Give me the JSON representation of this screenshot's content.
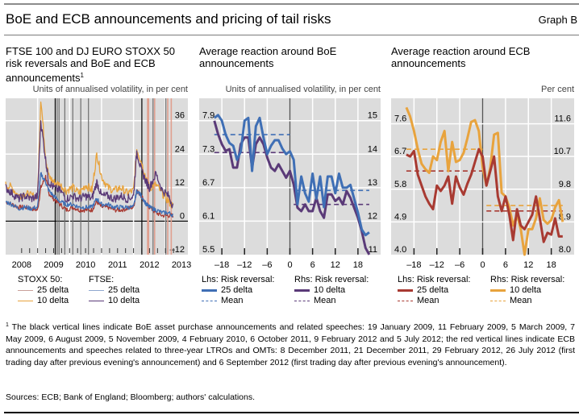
{
  "header": {
    "title": "BoE and ECB announcements and pricing of tail risks",
    "graph_label": "Graph B"
  },
  "footnote": {
    "marker": "1",
    "text": "The black vertical lines indicate BoE asset purchase announcements and related speeches: 19 January 2009, 11 February 2009, 5 March 2009, 7 May 2009, 6 August 2009, 5 November 2009, 4 February 2010, 6 October 2011, 9 February 2012 and 5 July 2012; the red vertical lines indicate ECB announcements and speeches related to three-year LTROs and OMTs: 8 December 2011, 21 December 2011, 29 February 2012, 26 July 2012 (first trading day after previous evening's announcement) and 6 September 2012 (first trading day after previous evening's announcement)."
  },
  "sources": "Sources: ECB; Bank of England; Bloomberg; authors' calculations.",
  "chart_data": [
    {
      "type": "line",
      "title": "FTSE 100 and DJ EURO STOXX 50 risk reversals and BoE and ECB announcements",
      "title_footnote": "1",
      "ylabel": "Units of annualised volatility, in per cent",
      "y_axis_side": "right",
      "ylim": [
        -12,
        44
      ],
      "yticks": [
        36,
        24,
        12,
        0,
        -12
      ],
      "xlim": [
        2007.5,
        2013.2
      ],
      "xticks": [
        "2008",
        "2009",
        "2010",
        "2011",
        "2012",
        "2013"
      ],
      "grid": true,
      "legend": {
        "placement": "bottom",
        "groups": [
          {
            "header": "STOXX 50:",
            "items": [
              {
                "label": "25 delta",
                "color": "#c9a09a"
              },
              {
                "label": "10 delta",
                "color": "#e8a33d"
              }
            ]
          },
          {
            "header": "FTSE:",
            "items": [
              {
                "label": "25 delta",
                "color": "#8fa8cf"
              },
              {
                "label": "10 delta",
                "color": "#5a3a78"
              }
            ]
          }
        ]
      },
      "vertical_lines": {
        "boe_black": [
          2009.05,
          2009.11,
          2009.17,
          2009.35,
          2009.6,
          2009.85,
          2010.09,
          2011.76,
          2012.11,
          2012.51
        ],
        "ecb_red": [
          2011.94,
          2011.97,
          2012.16,
          2012.57,
          2012.68
        ]
      },
      "series": [
        {
          "name": "STOXX 50 25 delta",
          "color": "#a83a32",
          "x": [
            2007.5,
            2007.7,
            2007.9,
            2008.1,
            2008.3,
            2008.5,
            2008.6,
            2008.75,
            2008.85,
            2009.0,
            2009.2,
            2009.4,
            2009.6,
            2009.8,
            2010.0,
            2010.2,
            2010.35,
            2010.5,
            2010.7,
            2010.9,
            2011.1,
            2011.3,
            2011.5,
            2011.6,
            2011.75,
            2011.9,
            2012.0,
            2012.2,
            2012.4,
            2012.6,
            2012.75
          ],
          "values": [
            7,
            6,
            5,
            5,
            4.5,
            4,
            12,
            16,
            10,
            8,
            6,
            4,
            5,
            4,
            4,
            4,
            7,
            5,
            5,
            4,
            4,
            4.5,
            5,
            11,
            9,
            6,
            5,
            3,
            2,
            2,
            2
          ]
        },
        {
          "name": "STOXX 50 10 delta",
          "color": "#e8a33d",
          "x": [
            2007.5,
            2007.7,
            2007.9,
            2008.1,
            2008.3,
            2008.5,
            2008.6,
            2008.75,
            2008.85,
            2009.0,
            2009.2,
            2009.4,
            2009.6,
            2009.8,
            2010.0,
            2010.2,
            2010.35,
            2010.5,
            2010.7,
            2010.9,
            2011.1,
            2011.3,
            2011.5,
            2011.6,
            2011.75,
            2011.9,
            2012.0,
            2012.2,
            2012.4,
            2012.6,
            2012.75
          ],
          "values": [
            13,
            12,
            9,
            10,
            9,
            9,
            44,
            23,
            16,
            14,
            13,
            11,
            12,
            10,
            13,
            11,
            24,
            16,
            12,
            11,
            12,
            10,
            11,
            26,
            21,
            15,
            12,
            13,
            10,
            7,
            5
          ]
        },
        {
          "name": "FTSE 25 delta",
          "color": "#3f6fb5",
          "x": [
            2007.5,
            2007.7,
            2007.9,
            2008.1,
            2008.3,
            2008.5,
            2008.6,
            2008.75,
            2008.85,
            2009.0,
            2009.2,
            2009.4,
            2009.6,
            2009.8,
            2010.0,
            2010.2,
            2010.35,
            2010.5,
            2010.7,
            2010.9,
            2011.1,
            2011.3,
            2011.5,
            2011.6,
            2011.75,
            2011.9,
            2012.0,
            2012.2,
            2012.4,
            2012.6,
            2012.75
          ],
          "values": [
            7,
            6,
            4.5,
            5,
            4.5,
            5,
            17,
            14,
            11,
            9,
            7,
            6,
            6,
            5,
            5,
            5,
            8,
            6,
            6,
            5,
            5,
            5,
            5,
            11,
            9,
            6,
            5,
            4,
            3,
            3,
            2
          ]
        },
        {
          "name": "FTSE 10 delta",
          "color": "#5a3a78",
          "x": [
            2007.5,
            2007.7,
            2007.9,
            2008.1,
            2008.3,
            2008.5,
            2008.6,
            2008.75,
            2008.85,
            2009.0,
            2009.2,
            2009.4,
            2009.6,
            2009.8,
            2010.0,
            2010.2,
            2010.35,
            2010.5,
            2010.7,
            2010.9,
            2011.1,
            2011.3,
            2011.5,
            2011.6,
            2011.75,
            2011.9,
            2012.0,
            2012.2,
            2012.4,
            2012.6,
            2012.75
          ],
          "values": [
            12,
            10,
            8,
            9,
            8,
            9,
            36,
            22,
            14,
            12,
            11,
            8,
            9,
            8,
            9,
            8,
            14,
            9,
            9,
            8,
            9,
            8,
            9,
            25,
            18,
            14,
            12,
            17,
            11,
            9,
            5
          ]
        }
      ]
    },
    {
      "type": "line",
      "title": "Average reaction around BoE announcements",
      "ylabel": "Units of annualised volatility, in per cent",
      "xticks": [
        "–18",
        "–12",
        "–6",
        "0",
        "6",
        "12",
        "18"
      ],
      "xtick_values": [
        -18,
        -12,
        -6,
        0,
        6,
        12,
        18
      ],
      "xlim": [
        -24,
        24
      ],
      "y_left": {
        "ylim": [
          5.5,
          8.3
        ],
        "yticks": [
          "7.9",
          "7.3",
          "6.7",
          "6.1",
          "5.5"
        ]
      },
      "y_right": {
        "ylim": [
          11,
          15.67
        ],
        "yticks": [
          "15",
          "14",
          "13",
          "12",
          "11"
        ]
      },
      "grid": true,
      "legend": {
        "placement": "bottom",
        "groups": [
          {
            "header": "Lhs: Risk reversal:",
            "items": [
              {
                "label": "25 delta",
                "color": "#3f6fb5",
                "style": "solid"
              },
              {
                "label": "Mean",
                "color": "#3f6fb5",
                "style": "dashed"
              }
            ]
          },
          {
            "header": "Rhs: Risk reversal:",
            "items": [
              {
                "label": "10 delta",
                "color": "#5a3a78",
                "style": "solid"
              },
              {
                "label": "Mean",
                "color": "#5a3a78",
                "style": "dashed"
              }
            ]
          }
        ]
      },
      "series": [
        {
          "name": "25 delta (Lhs)",
          "axis": "left",
          "color": "#3f6fb5",
          "x": [
            -20,
            -19,
            -18,
            -17,
            -16,
            -15,
            -14,
            -13,
            -12,
            -11,
            -10,
            -9,
            -8,
            -7,
            -6,
            -5,
            -4,
            -3,
            -2,
            -1,
            0,
            1,
            2,
            3,
            4,
            5,
            6,
            7,
            8,
            9,
            10,
            11,
            12,
            13,
            14,
            15,
            16,
            17,
            18,
            19,
            20,
            21
          ],
          "values": [
            7.95,
            8.0,
            7.9,
            7.65,
            7.5,
            7.45,
            7.2,
            7.35,
            7.9,
            7.95,
            7.0,
            7.8,
            7.95,
            7.6,
            7.3,
            7.45,
            7.55,
            7.55,
            7.4,
            7.3,
            7.35,
            7.2,
            6.4,
            6.9,
            6.6,
            6.45,
            6.95,
            6.5,
            6.9,
            6.35,
            6.9,
            6.9,
            6.6,
            6.95,
            6.7,
            6.7,
            6.75,
            6.5,
            6.25,
            5.95,
            5.85,
            5.9
          ]
        },
        {
          "name": "10 delta (Rhs)",
          "axis": "right",
          "color": "#5a3a78",
          "x": [
            -20,
            -19,
            -18,
            -17,
            -16,
            -15,
            -14,
            -13,
            -12,
            -11,
            -10,
            -9,
            -8,
            -7,
            -6,
            -5,
            -4,
            -3,
            -2,
            -1,
            0,
            1,
            2,
            3,
            4,
            5,
            6,
            7,
            8,
            9,
            10,
            11,
            12,
            13,
            14,
            15,
            16,
            17,
            18,
            19,
            20,
            21
          ],
          "values": [
            15,
            14.6,
            14.3,
            14.1,
            14.15,
            13.6,
            13.6,
            14.3,
            14.5,
            14.5,
            13.6,
            14.3,
            14.5,
            14.3,
            13.9,
            13.6,
            13.5,
            13.7,
            13.5,
            13.3,
            13.5,
            13.1,
            12.4,
            12.3,
            12.5,
            12.3,
            12.3,
            12.7,
            12.3,
            12.1,
            12.8,
            12.8,
            12.6,
            12.7,
            12.5,
            12.9,
            12.7,
            12.4,
            12.1,
            11.7,
            11.2,
            11.0
          ]
        },
        {
          "name": "25 delta mean (Lhs)",
          "axis": "left",
          "color": "#3f6fb5",
          "style": "dashed",
          "segments": [
            {
              "x": [
                -20,
                0
              ],
              "value": 7.65
            },
            {
              "x": [
                1,
                21
              ],
              "value": 6.65
            }
          ]
        },
        {
          "name": "10 delta mean (Rhs)",
          "axis": "right",
          "color": "#5a3a78",
          "style": "dashed",
          "segments": [
            {
              "x": [
                -20,
                0
              ],
              "value": 14.05
            },
            {
              "x": [
                1,
                21
              ],
              "value": 12.5
            }
          ]
        }
      ]
    },
    {
      "type": "line",
      "title": "Average reaction around ECB announcements",
      "ylabel": "Per cent",
      "xticks": [
        "–18",
        "–12",
        "–6",
        "0",
        "6",
        "12",
        "18"
      ],
      "xtick_values": [
        -18,
        -12,
        -6,
        0,
        6,
        12,
        18
      ],
      "xlim": [
        -24,
        24
      ],
      "y_left": {
        "ylim": [
          4.0,
          8.3
        ],
        "yticks": [
          "7.6",
          "6.7",
          "5.8",
          "4.9",
          "4.0"
        ]
      },
      "y_right": {
        "ylim": [
          8.0,
          12.3
        ],
        "yticks": [
          "11.6",
          "10.7",
          "9.8",
          "8.9",
          "8.0"
        ]
      },
      "grid": true,
      "legend": {
        "placement": "bottom",
        "groups": [
          {
            "header": "Lhs: Risk reversal:",
            "items": [
              {
                "label": "25 delta",
                "color": "#a83a32",
                "style": "solid"
              },
              {
                "label": "Mean",
                "color": "#a83a32",
                "style": "dashed"
              }
            ]
          },
          {
            "header": "Rhs: Risk reversal:",
            "items": [
              {
                "label": "10 delta",
                "color": "#e8a33d",
                "style": "solid"
              },
              {
                "label": "Mean",
                "color": "#e8a33d",
                "style": "dashed"
              }
            ]
          }
        ]
      },
      "series": [
        {
          "name": "25 delta (Lhs)",
          "axis": "left",
          "color": "#a83a32",
          "x": [
            -20,
            -19,
            -18,
            -17,
            -16,
            -15,
            -14,
            -13,
            -12,
            -11,
            -10,
            -9,
            -8,
            -7,
            -6,
            -5,
            -4,
            -3,
            -2,
            -1,
            0,
            1,
            2,
            3,
            4,
            5,
            6,
            7,
            8,
            9,
            10,
            11,
            12,
            13,
            14,
            15,
            16,
            17,
            18,
            19,
            20,
            21
          ],
          "values": [
            6.75,
            6.7,
            6.85,
            6.2,
            5.9,
            5.6,
            5.4,
            5.25,
            5.9,
            5.75,
            5.9,
            6.15,
            5.4,
            6.15,
            5.85,
            5.65,
            5.95,
            6.2,
            6.55,
            6.9,
            6.7,
            5.9,
            6.3,
            6.7,
            5.6,
            5.2,
            5.6,
            5.1,
            4.4,
            5.25,
            4.8,
            4.7,
            4.9,
            5.1,
            5.6,
            5.0,
            4.35,
            4.6,
            4.55,
            5.0,
            4.5,
            4.5
          ]
        },
        {
          "name": "10 delta (Rhs)",
          "axis": "right",
          "color": "#e8a33d",
          "x": [
            -20,
            -19,
            -18,
            -17,
            -16,
            -15,
            -14,
            -13,
            -12,
            -11,
            -10,
            -9,
            -8,
            -7,
            -6,
            -5,
            -4,
            -3,
            -2,
            -1,
            0,
            1,
            2,
            3,
            4,
            5,
            6,
            7,
            8,
            9,
            10,
            11,
            12,
            13,
            14,
            15,
            16,
            17,
            18,
            19,
            20,
            21
          ],
          "values": [
            12.05,
            11.8,
            11.4,
            10.9,
            10.5,
            10.35,
            10.25,
            10.7,
            10.6,
            11.1,
            11.4,
            10.3,
            11.1,
            10.55,
            10.6,
            10.8,
            11.2,
            11.65,
            11.7,
            11.4,
            10.4,
            9.9,
            10.4,
            11.3,
            11.35,
            9.7,
            9.6,
            9.3,
            8.8,
            9.1,
            8.7,
            8.0,
            8.7,
            8.7,
            9.0,
            9.55,
            8.95,
            8.85,
            8.95,
            9.3,
            9.5,
            8.9
          ]
        },
        {
          "name": "25 delta mean (Lhs)",
          "axis": "left",
          "color": "#a83a32",
          "style": "dashed",
          "segments": [
            {
              "x": [
                -20,
                0
              ],
              "value": 6.3
            },
            {
              "x": [
                1,
                21
              ],
              "value": 5.2
            }
          ]
        },
        {
          "name": "10 delta mean (Rhs)",
          "axis": "right",
          "color": "#e8a33d",
          "style": "dashed",
          "segments": [
            {
              "x": [
                -20,
                0
              ],
              "value": 10.9
            },
            {
              "x": [
                1,
                21
              ],
              "value": 9.35
            }
          ]
        }
      ]
    }
  ]
}
